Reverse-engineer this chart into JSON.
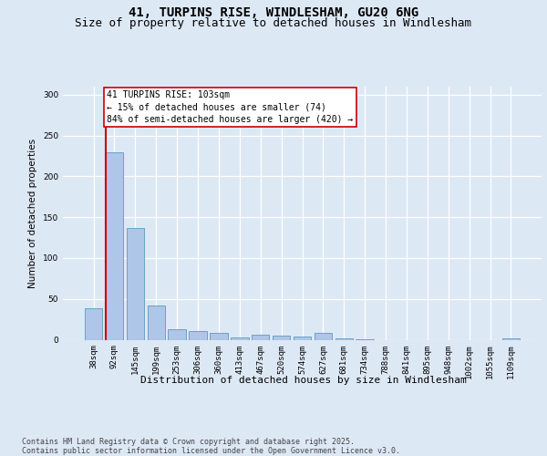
{
  "title_line1": "41, TURPINS RISE, WINDLESHAM, GU20 6NG",
  "title_line2": "Size of property relative to detached houses in Windlesham",
  "xlabel": "Distribution of detached houses by size in Windlesham",
  "ylabel": "Number of detached properties",
  "categories": [
    "38sqm",
    "92sqm",
    "145sqm",
    "199sqm",
    "253sqm",
    "306sqm",
    "360sqm",
    "413sqm",
    "467sqm",
    "520sqm",
    "574sqm",
    "627sqm",
    "681sqm",
    "734sqm",
    "788sqm",
    "841sqm",
    "895sqm",
    "948sqm",
    "1002sqm",
    "1055sqm",
    "1109sqm"
  ],
  "values": [
    39,
    230,
    137,
    42,
    13,
    11,
    8,
    3,
    6,
    5,
    4,
    8,
    2,
    1,
    0,
    0,
    0,
    0,
    0,
    0,
    2
  ],
  "bar_color": "#aec6e8",
  "bar_edge_color": "#5b9bbf",
  "marker_line_color": "#cc0000",
  "annotation_text": "41 TURPINS RISE: 103sqm\n← 15% of detached houses are smaller (74)\n84% of semi-detached houses are larger (420) →",
  "annotation_box_color": "#ffffff",
  "annotation_box_edge_color": "#cc0000",
  "ylim": [
    0,
    310
  ],
  "yticks": [
    0,
    50,
    100,
    150,
    200,
    250,
    300
  ],
  "bg_color": "#dde8f5",
  "grid_color": "#ffffff",
  "footer_text": "Contains HM Land Registry data © Crown copyright and database right 2025.\nContains public sector information licensed under the Open Government Licence v3.0.",
  "title_fontsize": 10,
  "subtitle_fontsize": 9,
  "axis_label_fontsize": 8,
  "tick_fontsize": 6.5,
  "footer_fontsize": 6,
  "annotation_fontsize": 7,
  "ylabel_fontsize": 7.5
}
